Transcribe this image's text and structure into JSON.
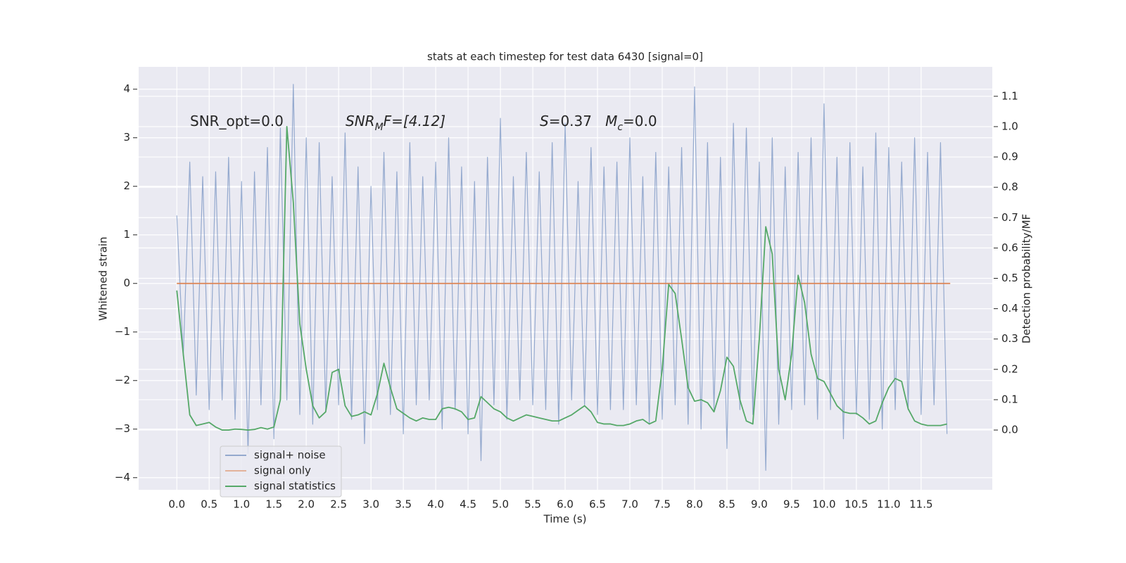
{
  "chart_data": {
    "type": "line",
    "title": "stats at each timestep for test data 6430 [signal=0]",
    "xlabel": "Time (s)",
    "ylabel": "Whitened strain",
    "y2label": "Detection probability/MF",
    "annotations": [
      [
        "SNR_opt=0.0"
      ],
      [
        "SNR",
        "M",
        "F=[4.12]"
      ],
      [
        "S",
        "=0.37   ",
        "M",
        "c",
        "=0.0"
      ]
    ],
    "grid": true,
    "legend": "lower left",
    "xlim": [
      -0.59,
      12.6
    ],
    "ylim": [
      -4.25,
      4.46
    ],
    "y2lim": [
      -0.197,
      1.197
    ],
    "xticks": [
      {
        "value": 0,
        "label": "0.0"
      },
      0.5,
      {
        "value": 1,
        "label": "1.0"
      },
      1.5,
      {
        "value": 2,
        "label": "2.0"
      },
      2.5,
      {
        "value": 3,
        "label": "3.0"
      },
      3.5,
      {
        "value": 4,
        "label": "4.0"
      },
      4.5,
      {
        "value": 5,
        "label": "5.0"
      },
      5.5,
      {
        "value": 6,
        "label": "6.0"
      },
      6.5,
      {
        "value": 7,
        "label": "7.0"
      },
      7.5,
      {
        "value": 8,
        "label": "8.0"
      },
      8.5,
      {
        "value": 9,
        "label": "9.0"
      },
      9.5,
      {
        "value": 10,
        "label": "10.0"
      },
      10.5,
      {
        "value": 11,
        "label": "11.0"
      },
      11.5
    ],
    "yticks": [
      {
        "value": -4,
        "label": "−4"
      },
      {
        "value": -3,
        "label": "−3"
      },
      {
        "value": -2,
        "label": "−2"
      },
      {
        "value": -1,
        "label": "−1"
      },
      0,
      1,
      2,
      3,
      4
    ],
    "y2ticks": [
      {
        "value": 0,
        "label": "0.0"
      },
      0.1,
      0.2,
      0.3,
      0.4,
      0.5,
      0.6,
      0.7,
      0.8,
      0.9,
      {
        "value": 1,
        "label": "1.0"
      },
      1.1
    ],
    "series": [
      {
        "name": "signal+ noise",
        "color": "#4c72b0",
        "x": [
          0,
          0.1,
          0.2,
          0.3,
          0.4,
          0.5,
          0.6,
          0.7,
          0.8,
          0.9,
          1,
          1.1,
          1.2,
          1.3,
          1.4,
          1.5,
          1.6,
          1.7,
          1.8,
          1.9,
          2,
          2.1,
          2.2,
          2.3,
          2.4,
          2.5,
          2.6,
          2.7,
          2.8,
          2.9,
          3,
          3.1,
          3.2,
          3.3,
          3.4,
          3.5,
          3.6,
          3.7,
          3.8,
          3.9,
          4,
          4.1,
          4.2,
          4.3,
          4.4,
          4.5,
          4.6,
          4.7,
          4.8,
          4.9,
          5,
          5.1,
          5.2,
          5.3,
          5.4,
          5.5,
          5.6,
          5.7,
          5.8,
          5.9,
          6,
          6.1,
          6.2,
          6.3,
          6.4,
          6.5,
          6.6,
          6.7,
          6.8,
          6.9,
          7,
          7.1,
          7.2,
          7.3,
          7.4,
          7.5,
          7.6,
          7.7,
          7.8,
          7.9,
          8,
          8.1,
          8.2,
          8.3,
          8.4,
          8.5,
          8.6,
          8.7,
          8.8,
          8.9,
          9,
          9.1,
          9.2,
          9.3,
          9.4,
          9.5,
          9.6,
          9.7,
          9.8,
          9.9,
          10,
          10.1,
          10.2,
          10.3,
          10.4,
          10.5,
          10.6,
          10.7,
          10.8,
          10.9,
          11,
          11.1,
          11.2,
          11.3,
          11.4,
          11.5,
          11.6,
          11.7,
          11.8,
          11.9
        ],
        "values": [
          1.4,
          -1.5,
          2.5,
          -2.3,
          2.2,
          -2.6,
          2.3,
          -2.4,
          2.6,
          -2.8,
          2.1,
          -3.5,
          2.3,
          -2.5,
          2.8,
          -3.2,
          3.2,
          -2.4,
          4.1,
          -2.7,
          3.0,
          -2.9,
          2.9,
          -2.6,
          2.2,
          -2.5,
          3.1,
          -2.8,
          2.4,
          -3.3,
          2.0,
          -2.6,
          2.7,
          -2.7,
          2.3,
          -3.1,
          2.9,
          -2.5,
          2.2,
          -2.4,
          2.5,
          -3.0,
          3.0,
          -2.6,
          2.4,
          -3.1,
          2.1,
          -3.65,
          2.6,
          -2.5,
          3.4,
          -2.8,
          2.2,
          -2.4,
          2.7,
          -2.5,
          2.3,
          -2.6,
          2.9,
          -2.9,
          3.3,
          -2.4,
          2.1,
          -2.5,
          2.8,
          -2.7,
          2.4,
          -2.6,
          2.5,
          -2.6,
          3.0,
          -2.5,
          2.2,
          -2.9,
          2.7,
          -2.8,
          2.4,
          -2.5,
          2.8,
          -2.9,
          4.05,
          -3.0,
          2.9,
          -2.6,
          2.6,
          -3.4,
          3.3,
          -2.6,
          3.2,
          -2.7,
          2.5,
          -3.85,
          3.0,
          -2.9,
          2.4,
          -2.6,
          2.7,
          -2.5,
          3.0,
          -2.8,
          3.7,
          -2.6,
          2.6,
          -3.2,
          2.9,
          -2.7,
          2.4,
          -2.8,
          3.1,
          -3.0,
          2.8,
          -2.6,
          2.5,
          -2.6,
          3.0,
          -2.7,
          2.7,
          -2.5,
          2.9,
          -3.1
        ]
      },
      {
        "name": "signal only",
        "color": "#dd8452",
        "x": [
          0,
          11.95
        ],
        "values": [
          0,
          0
        ]
      },
      {
        "name": "signal statistics",
        "color": "#55a868",
        "axis": "y2",
        "x": [
          0,
          0.1,
          0.2,
          0.3,
          0.4,
          0.5,
          0.6,
          0.7,
          0.8,
          0.9,
          1,
          1.1,
          1.2,
          1.3,
          1.4,
          1.5,
          1.6,
          1.7,
          1.8,
          1.9,
          2,
          2.1,
          2.2,
          2.3,
          2.4,
          2.5,
          2.6,
          2.7,
          2.8,
          2.9,
          3,
          3.1,
          3.2,
          3.3,
          3.4,
          3.5,
          3.6,
          3.7,
          3.8,
          3.9,
          4,
          4.1,
          4.2,
          4.3,
          4.4,
          4.5,
          4.6,
          4.7,
          4.8,
          4.9,
          5,
          5.1,
          5.2,
          5.3,
          5.4,
          5.5,
          5.6,
          5.7,
          5.8,
          5.9,
          6,
          6.1,
          6.2,
          6.3,
          6.4,
          6.5,
          6.6,
          6.7,
          6.8,
          6.9,
          7,
          7.1,
          7.2,
          7.3,
          7.4,
          7.5,
          7.6,
          7.7,
          7.8,
          7.9,
          8,
          8.1,
          8.2,
          8.3,
          8.4,
          8.5,
          8.6,
          8.7,
          8.8,
          8.9,
          9,
          9.1,
          9.2,
          9.3,
          9.4,
          9.5,
          9.6,
          9.7,
          9.8,
          9.9,
          10,
          10.1,
          10.2,
          10.3,
          10.4,
          10.5,
          10.6,
          10.7,
          10.8,
          10.9,
          11,
          11.1,
          11.2,
          11.3,
          11.4,
          11.5,
          11.6,
          11.7,
          11.8,
          11.9
        ],
        "values": [
          0.46,
          0.25,
          0.05,
          0.015,
          0.02,
          0.025,
          0.01,
          0.0,
          0.0,
          0.003,
          0.002,
          0.0,
          0.002,
          0.008,
          0.003,
          0.01,
          0.1,
          1.0,
          0.75,
          0.35,
          0.2,
          0.08,
          0.04,
          0.06,
          0.19,
          0.2,
          0.08,
          0.045,
          0.05,
          0.06,
          0.05,
          0.12,
          0.22,
          0.14,
          0.07,
          0.055,
          0.04,
          0.03,
          0.04,
          0.035,
          0.035,
          0.07,
          0.075,
          0.07,
          0.06,
          0.035,
          0.04,
          0.11,
          0.09,
          0.07,
          0.06,
          0.04,
          0.03,
          0.04,
          0.05,
          0.045,
          0.04,
          0.035,
          0.03,
          0.03,
          0.04,
          0.05,
          0.065,
          0.08,
          0.06,
          0.025,
          0.02,
          0.02,
          0.015,
          0.015,
          0.02,
          0.03,
          0.035,
          0.02,
          0.03,
          0.2,
          0.48,
          0.45,
          0.3,
          0.14,
          0.095,
          0.1,
          0.09,
          0.06,
          0.13,
          0.24,
          0.21,
          0.1,
          0.03,
          0.02,
          0.3,
          0.67,
          0.58,
          0.2,
          0.1,
          0.25,
          0.51,
          0.42,
          0.25,
          0.17,
          0.16,
          0.12,
          0.08,
          0.06,
          0.055,
          0.055,
          0.04,
          0.02,
          0.03,
          0.09,
          0.14,
          0.17,
          0.16,
          0.07,
          0.03,
          0.02,
          0.015,
          0.015,
          0.015,
          0.02
        ]
      }
    ]
  }
}
